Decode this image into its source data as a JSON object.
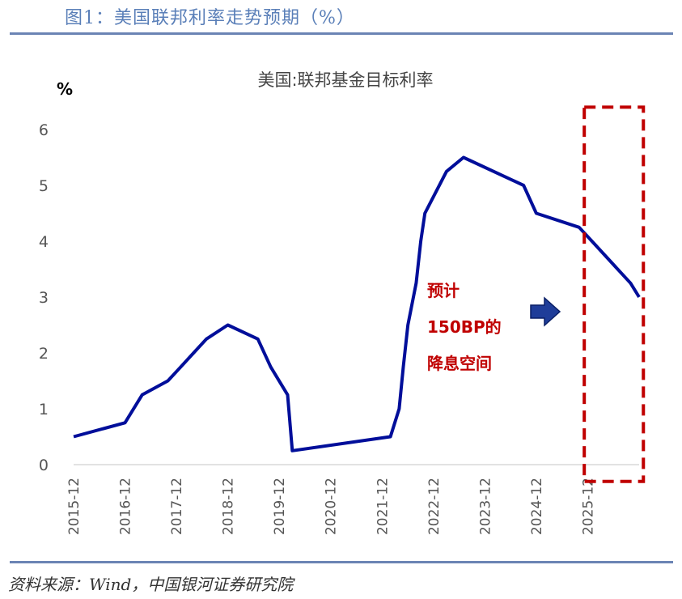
{
  "figure_title": "图1：美国联邦利率走势预期（%）",
  "source": "资料来源：Wind，中国银河证券研究院",
  "colors": {
    "line": "#000e9a",
    "box": "#c00000",
    "arrow": "#1f3d99",
    "rule": "#6b84b4"
  },
  "chart_data": {
    "type": "line",
    "title": "美国:联邦基金目标利率",
    "ylabel": "%",
    "ylim": [
      0,
      6
    ],
    "yticks": [
      0,
      1,
      2,
      3,
      4,
      5,
      6
    ],
    "xlim": [
      2015.917,
      2026.917
    ],
    "xticks": [
      {
        "label": "2015-12",
        "x": 2015.917
      },
      {
        "label": "2016-12",
        "x": 2016.917
      },
      {
        "label": "2017-12",
        "x": 2017.917
      },
      {
        "label": "2018-12",
        "x": 2018.917
      },
      {
        "label": "2019-12",
        "x": 2019.917
      },
      {
        "label": "2020-12",
        "x": 2020.917
      },
      {
        "label": "2021-12",
        "x": 2021.917
      },
      {
        "label": "2022-12",
        "x": 2022.917
      },
      {
        "label": "2023-12",
        "x": 2023.917
      },
      {
        "label": "2024-12",
        "x": 2024.917
      },
      {
        "label": "2025-12",
        "x": 2025.917
      }
    ],
    "series": [
      {
        "points": [
          [
            2015.917,
            0.5
          ],
          [
            2016.917,
            0.75
          ],
          [
            2017.25,
            1.25
          ],
          [
            2017.75,
            1.5
          ],
          [
            2018.0,
            1.75
          ],
          [
            2018.25,
            2.0
          ],
          [
            2018.5,
            2.25
          ],
          [
            2018.917,
            2.5
          ],
          [
            2019.5,
            2.25
          ],
          [
            2019.75,
            1.75
          ],
          [
            2020.08,
            1.25
          ],
          [
            2020.17,
            0.25
          ],
          [
            2022.08,
            0.5
          ],
          [
            2022.25,
            1.0
          ],
          [
            2022.33,
            1.75
          ],
          [
            2022.42,
            2.5
          ],
          [
            2022.58,
            3.25
          ],
          [
            2022.67,
            4.0
          ],
          [
            2022.75,
            4.5
          ],
          [
            2023.17,
            5.25
          ],
          [
            2023.5,
            5.5
          ],
          [
            2024.67,
            5.0
          ],
          [
            2024.917,
            4.5
          ],
          [
            2025.75,
            4.25
          ],
          [
            2026.0,
            4.0
          ],
          [
            2026.75,
            3.25
          ],
          [
            2026.917,
            3.0
          ]
        ]
      }
    ],
    "annotation": {
      "lines": [
        "预计",
        "150BP的",
        "降息空间"
      ]
    },
    "highlight_box": {
      "x_range": [
        2025.85,
        2027.0
      ],
      "y_range": [
        -0.3,
        6.4
      ]
    }
  }
}
